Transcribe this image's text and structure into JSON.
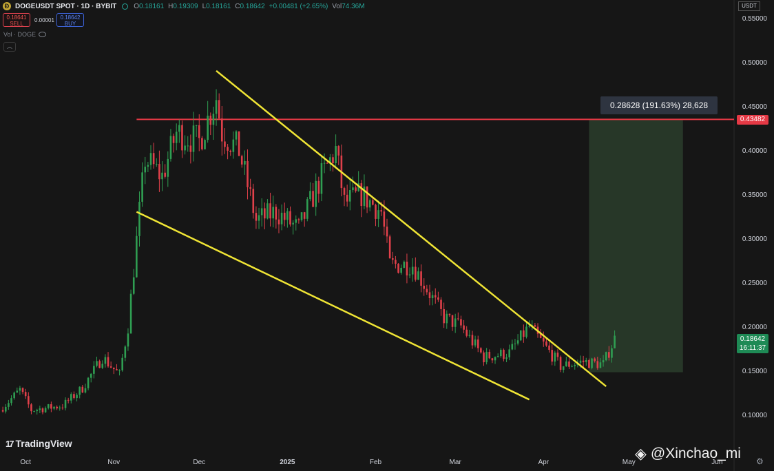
{
  "header": {
    "symbol": "DOGEUSDT SPOT · 1D · BYBIT",
    "ohlc": [
      {
        "k": "O",
        "v": "0.18161"
      },
      {
        "k": "H",
        "v": "0.19309"
      },
      {
        "k": "L",
        "v": "0.18161"
      },
      {
        "k": "C",
        "v": "0.18642"
      },
      {
        "k": "",
        "v": "+0.00481 (+2.65%)"
      },
      {
        "k": "Vol",
        "v": "74.36M"
      }
    ],
    "coin_icon": "doge-coin-icon"
  },
  "trade": {
    "sell_price": "0.18641",
    "sell_label": "SELL",
    "spread": "0.00001",
    "buy_price": "0.18642",
    "buy_label": "BUY"
  },
  "volume_indicator": "Vol · DOGE",
  "currency_label": "USDT",
  "measure_label": "0.28628 (191.63%) 28,628",
  "resistance_tag": "0.43482",
  "last_price": {
    "price": "0.18642",
    "countdown": "16:11:37"
  },
  "brand": "TradingView",
  "watermark": "@Xinchao_mi",
  "colors": {
    "background": "#161616",
    "up": "#26a69a",
    "down": "#ef5350",
    "up_candle": "#2f9e52",
    "down_candle": "#e0404a",
    "trendline": "#f0e535",
    "resistance": "#e53945",
    "projection": "#2a3d2c"
  },
  "chart_data": {
    "type": "candlestick",
    "title": "DOGEUSDT SPOT · 1D · BYBIT",
    "y_axis": {
      "ticks": [
        "0.55000",
        "0.50000",
        "0.45000",
        "0.40000",
        "0.35000",
        "0.30000",
        "0.25000",
        "0.20000",
        "0.15000",
        "0.10000"
      ],
      "range": [
        0.075,
        0.56
      ],
      "side": "right"
    },
    "x_axis": {
      "ticks": [
        "Oct",
        "Nov",
        "Dec",
        "2025",
        "Feb",
        "Mar",
        "Apr",
        "May",
        "Jun"
      ],
      "tick_dates": [
        "2024-10-01",
        "2024-11-01",
        "2024-12-01",
        "2025-01-01",
        "2025-02-01",
        "2025-03-01",
        "2025-04-01",
        "2025-05-01",
        "2025-06-01"
      ],
      "range": [
        "2024-09-22",
        "2025-06-21"
      ]
    },
    "series_price_path": [
      {
        "date": "2024-09-22",
        "price": 0.105
      },
      {
        "date": "2024-09-29",
        "price": 0.128
      },
      {
        "date": "2024-10-03",
        "price": 0.105
      },
      {
        "date": "2024-10-14",
        "price": 0.11
      },
      {
        "date": "2024-10-21",
        "price": 0.13
      },
      {
        "date": "2024-10-28",
        "price": 0.165
      },
      {
        "date": "2024-11-03",
        "price": 0.145
      },
      {
        "date": "2024-11-06",
        "price": 0.2
      },
      {
        "date": "2024-11-10",
        "price": 0.33
      },
      {
        "date": "2024-11-12",
        "price": 0.39
      },
      {
        "date": "2024-11-18",
        "price": 0.37
      },
      {
        "date": "2024-11-23",
        "price": 0.42
      },
      {
        "date": "2024-12-01",
        "price": 0.41
      },
      {
        "date": "2024-12-07",
        "price": 0.46
      },
      {
        "date": "2024-12-09",
        "price": 0.42
      },
      {
        "date": "2024-12-15",
        "price": 0.4
      },
      {
        "date": "2024-12-21",
        "price": 0.32
      },
      {
        "date": "2024-12-28",
        "price": 0.33
      },
      {
        "date": "2025-01-05",
        "price": 0.31
      },
      {
        "date": "2025-01-13",
        "price": 0.37
      },
      {
        "date": "2025-01-18",
        "price": 0.4
      },
      {
        "date": "2025-01-21",
        "price": 0.34
      },
      {
        "date": "2025-01-27",
        "price": 0.35
      },
      {
        "date": "2025-02-03",
        "price": 0.33
      },
      {
        "date": "2025-02-06",
        "price": 0.27
      },
      {
        "date": "2025-02-14",
        "price": 0.27
      },
      {
        "date": "2025-02-25",
        "price": 0.21
      },
      {
        "date": "2025-03-03",
        "price": 0.2
      },
      {
        "date": "2025-03-11",
        "price": 0.165
      },
      {
        "date": "2025-03-20",
        "price": 0.17
      },
      {
        "date": "2025-03-27",
        "price": 0.2
      },
      {
        "date": "2025-04-07",
        "price": 0.155
      },
      {
        "date": "2025-04-15",
        "price": 0.16
      },
      {
        "date": "2025-04-22",
        "price": 0.157
      },
      {
        "date": "2025-04-26",
        "price": 0.186
      }
    ],
    "annotations": [
      {
        "type": "trendline",
        "label": "upper wedge line",
        "from": {
          "date": "2024-12-07",
          "price": 0.49
        },
        "to": {
          "date": "2025-04-23",
          "price": 0.132
        }
      },
      {
        "type": "trendline",
        "label": "lower wedge line",
        "from": {
          "date": "2024-11-09",
          "price": 0.33
        },
        "to": {
          "date": "2025-03-27",
          "price": 0.117
        }
      },
      {
        "type": "hline",
        "price": 0.43482,
        "from_date": "2024-11-09",
        "label": "0.43482"
      },
      {
        "type": "measure",
        "from_date": "2025-04-17",
        "to_date": "2025-05-20",
        "price_from": 0.148,
        "price_to": 0.43482,
        "label": "0.28628 (191.63%) 28,628"
      }
    ],
    "last_price": 0.18642
  }
}
